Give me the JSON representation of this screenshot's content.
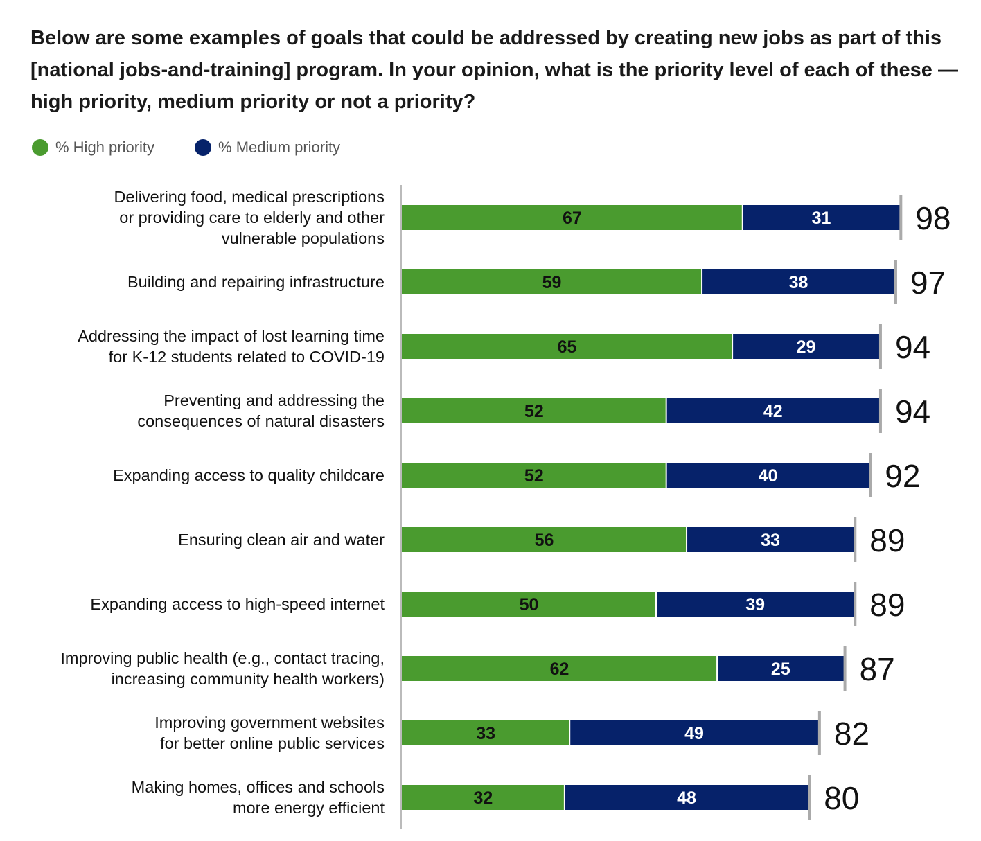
{
  "colors": {
    "high": "#4a9b2f",
    "medium": "#06226a",
    "tick": "#aaaaaa"
  },
  "chart_data": {
    "type": "bar",
    "stacked": true,
    "orientation": "horizontal",
    "title": "Below are some examples of goals that could be addressed by creating new jobs as part of this [national jobs-and-training] program. In your opinion, what is the priority level of each of these — high priority, medium priority or not a priority?",
    "legend": {
      "placement": "top-left",
      "entries": [
        "% High priority",
        "% Medium priority"
      ]
    },
    "categories": [
      "Delivering food, medical prescriptions\nor providing care to elderly and other\nvulnerable populations",
      "Building and repairing infrastructure",
      "Addressing the impact of lost learning time\nfor K-12 students related to COVID-19",
      "Preventing and addressing the\nconsequences of natural disasters",
      "Expanding access to quality childcare",
      "Ensuring clean air and water",
      "Expanding access to high-speed internet",
      "Improving public health (e.g., contact tracing,\nincreasing community health workers)",
      "Improving government websites\nfor better online public services",
      "Making homes, offices and schools\nmore energy efficient"
    ],
    "series": [
      {
        "name": "% High priority",
        "values": [
          67,
          59,
          65,
          52,
          52,
          56,
          50,
          62,
          33,
          32
        ]
      },
      {
        "name": "% Medium priority",
        "values": [
          31,
          38,
          29,
          42,
          40,
          33,
          39,
          25,
          49,
          48
        ]
      }
    ],
    "totals": [
      98,
      97,
      94,
      94,
      92,
      89,
      89,
      87,
      82,
      80
    ],
    "xlim": [
      0,
      100
    ],
    "grid": false
  }
}
